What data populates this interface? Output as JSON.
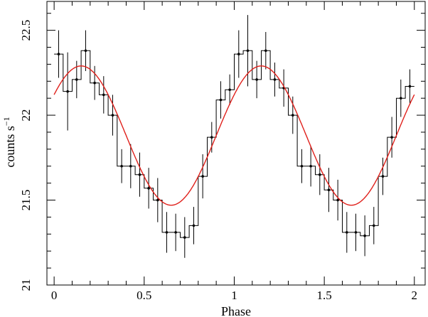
{
  "chart_data": {
    "type": "line",
    "xlabel": "Phase",
    "ylabel": "counts s",
    "ylabel_superscript": "−1",
    "xlim": [
      -0.04,
      2.06
    ],
    "ylim": [
      21.0,
      22.67
    ],
    "x_ticks": [
      0,
      0.5,
      1,
      1.5,
      2
    ],
    "x_tick_labels": [
      "0",
      "0.5",
      "1",
      "1.5",
      "2"
    ],
    "y_ticks": [
      21,
      21.5,
      22,
      22.5
    ],
    "y_tick_labels": [
      "21",
      "21.5",
      "22",
      "22.5"
    ],
    "bin_width": 0.05,
    "series": [
      {
        "style": "histogram-step-with-errorbars",
        "color": "#000000",
        "x": [
          0.025,
          0.075,
          0.125,
          0.175,
          0.225,
          0.275,
          0.325,
          0.375,
          0.425,
          0.475,
          0.525,
          0.575,
          0.625,
          0.675,
          0.725,
          0.775,
          0.825,
          0.875,
          0.925,
          0.975,
          1.025,
          1.075,
          1.125,
          1.175,
          1.225,
          1.275,
          1.325,
          1.375,
          1.425,
          1.475,
          1.525,
          1.575,
          1.625,
          1.675,
          1.725,
          1.775,
          1.825,
          1.875,
          1.925,
          1.975
        ],
        "y": [
          22.36,
          22.14,
          22.21,
          22.38,
          22.19,
          22.12,
          22.0,
          21.7,
          21.7,
          21.65,
          21.57,
          21.5,
          21.31,
          21.31,
          21.28,
          21.35,
          21.64,
          21.87,
          22.09,
          22.15,
          22.36,
          22.38,
          22.21,
          22.38,
          22.21,
          22.16,
          22.0,
          21.7,
          21.7,
          21.65,
          21.56,
          21.5,
          21.31,
          21.31,
          21.29,
          21.35,
          21.64,
          21.87,
          22.1,
          22.17
        ],
        "err": [
          0.14,
          0.23,
          0.11,
          0.12,
          0.1,
          0.11,
          0.12,
          0.1,
          0.13,
          0.13,
          0.12,
          0.13,
          0.12,
          0.11,
          0.12,
          0.11,
          0.13,
          0.09,
          0.11,
          0.09,
          0.14,
          0.21,
          0.11,
          0.11,
          0.1,
          0.11,
          0.11,
          0.1,
          0.12,
          0.12,
          0.13,
          0.12,
          0.12,
          0.11,
          0.12,
          0.11,
          0.11,
          0.12,
          0.11,
          0.1
        ]
      },
      {
        "style": "sinusoid-model",
        "color": "#e0201b",
        "model": {
          "mean": 21.88,
          "amplitude": 0.41,
          "period": 1.0,
          "phase_of_max": 0.15
        }
      }
    ]
  }
}
